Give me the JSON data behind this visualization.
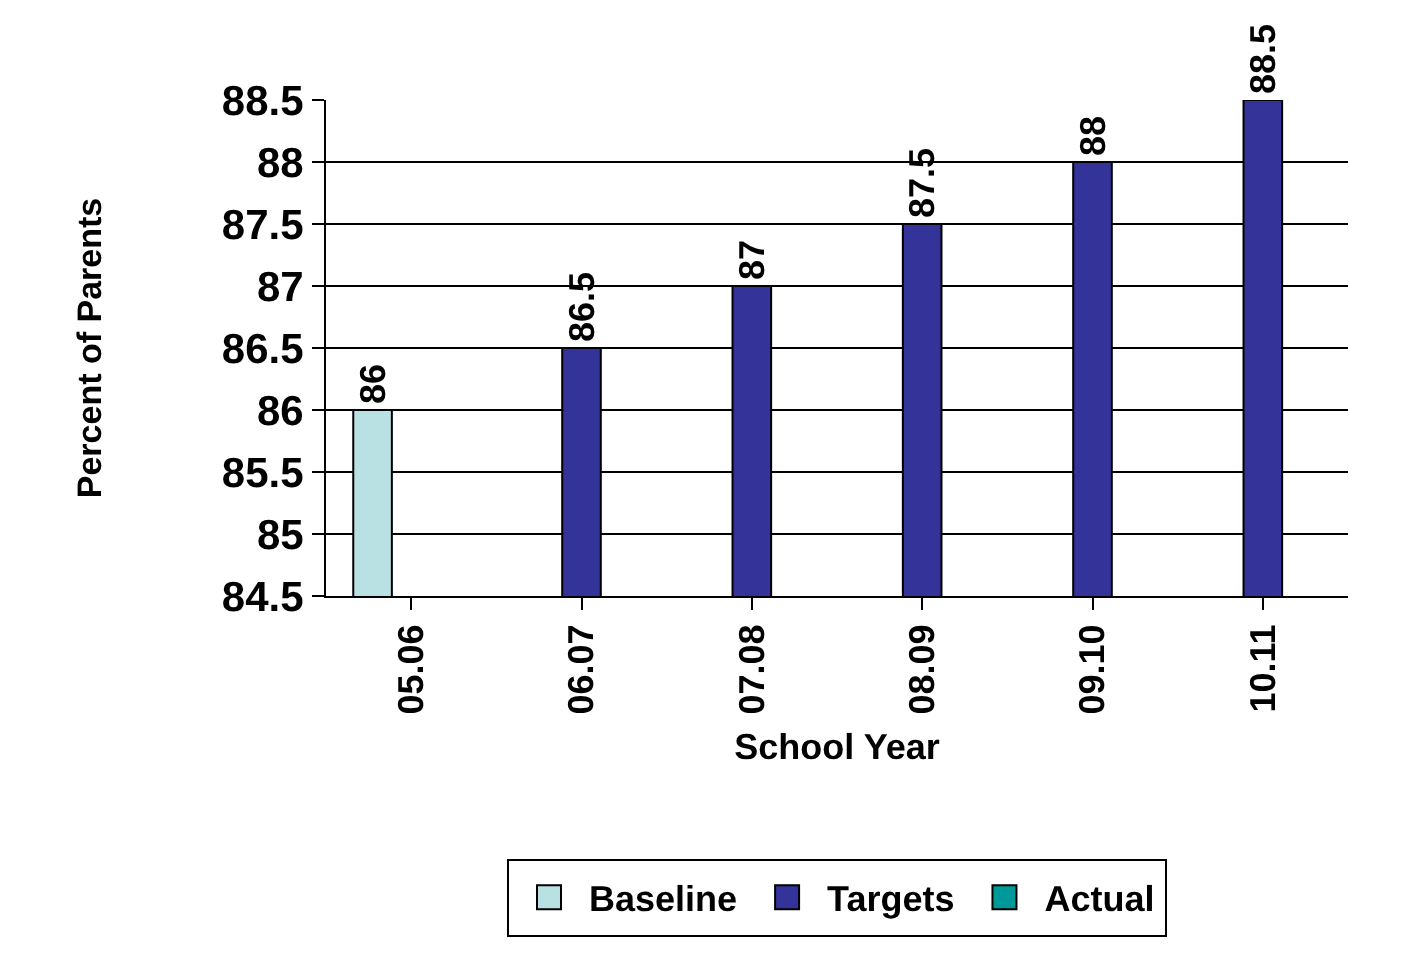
{
  "chart_data": {
    "type": "bar",
    "xlabel": "School Year",
    "ylabel": "Percent of Parents",
    "categories": [
      "05.06",
      "06.07",
      "07.08",
      "08.09",
      "09.10",
      "10.11"
    ],
    "series": [
      {
        "name": "Baseline",
        "color": "#b9e0e3",
        "values": [
          86,
          null,
          null,
          null,
          null,
          null
        ]
      },
      {
        "name": "Targets",
        "color": "#333399",
        "values": [
          null,
          86.5,
          87,
          87.5,
          88,
          88.5
        ]
      },
      {
        "name": "Actual",
        "color": "#009999",
        "values": [
          null,
          null,
          null,
          null,
          null,
          null
        ]
      }
    ],
    "ylim": [
      84.5,
      88.5
    ],
    "yticks": [
      84.5,
      85,
      85.5,
      86,
      86.5,
      87,
      87.5,
      88,
      88.5
    ],
    "data_labels": true,
    "grid": "y",
    "legend": "bottom"
  }
}
